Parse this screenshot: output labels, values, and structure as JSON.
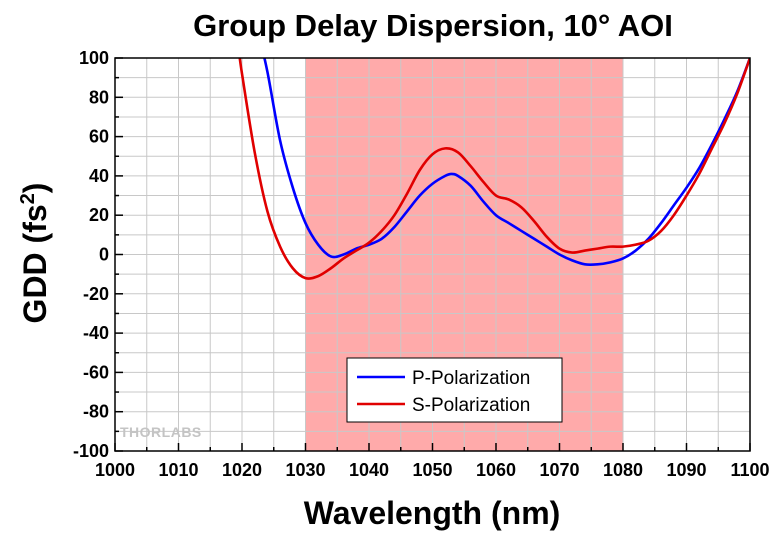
{
  "chart_data": {
    "type": "line",
    "title": "Group Delay Dispersion, 10° AOI",
    "xlabel": "Wavelength (nm)",
    "ylabel_main": "GDD (fs",
    "ylabel_sup": "2",
    "ylabel_close": ")",
    "xlim": [
      1000,
      1100
    ],
    "ylim": [
      -100,
      100
    ],
    "xticks": [
      1000,
      1010,
      1020,
      1030,
      1040,
      1050,
      1060,
      1070,
      1080,
      1090,
      1100
    ],
    "yticks": [
      -100,
      -80,
      -60,
      -40,
      -20,
      0,
      20,
      40,
      60,
      80,
      100
    ],
    "grid": true,
    "highlight_region": {
      "x": [
        1030,
        1080
      ],
      "color": "#ffaaaa"
    },
    "legend": {
      "placement": "bottom-center"
    },
    "watermark": "THORLABS",
    "series": [
      {
        "name": "P-Polarization",
        "color": "#0000ff",
        "x": [
          1022.5,
          1024,
          1026,
          1028,
          1030,
          1032,
          1034,
          1036,
          1038,
          1040,
          1042,
          1044,
          1046,
          1048,
          1050,
          1052,
          1053,
          1054,
          1056,
          1058,
          1060,
          1062,
          1064,
          1066,
          1068,
          1070,
          1072,
          1074,
          1076,
          1078,
          1080,
          1082,
          1084,
          1086,
          1088,
          1090,
          1092,
          1094,
          1096,
          1098,
          1100
        ],
        "y": [
          114,
          93,
          58,
          34,
          16,
          5,
          -1,
          0,
          3,
          5,
          8,
          14,
          22,
          30,
          36,
          40,
          41,
          40,
          35,
          27,
          20,
          16,
          12,
          8,
          4,
          0,
          -3,
          -5,
          -5,
          -4,
          -2,
          2,
          8,
          16,
          25,
          34,
          44,
          56,
          69,
          83,
          100
        ]
      },
      {
        "name": "S-Polarization",
        "color": "#e00000",
        "x": [
          1019.5,
          1020,
          1022,
          1024,
          1026,
          1028,
          1030,
          1032,
          1034,
          1036,
          1038,
          1040,
          1042,
          1044,
          1046,
          1048,
          1050,
          1052,
          1054,
          1056,
          1058,
          1060,
          1062,
          1064,
          1066,
          1068,
          1070,
          1072,
          1074,
          1076,
          1078,
          1080,
          1082,
          1084,
          1086,
          1088,
          1090,
          1092,
          1094,
          1096,
          1098,
          1100
        ],
        "y": [
          104,
          92,
          52,
          22,
          4,
          -7,
          -12,
          -11,
          -7,
          -2,
          2,
          6,
          12,
          20,
          31,
          43,
          51,
          54,
          52,
          45,
          37,
          30,
          28,
          24,
          17,
          9,
          3,
          1,
          2,
          3,
          4,
          4,
          5,
          7,
          12,
          20,
          30,
          41,
          54,
          67,
          82,
          100
        ]
      }
    ]
  }
}
